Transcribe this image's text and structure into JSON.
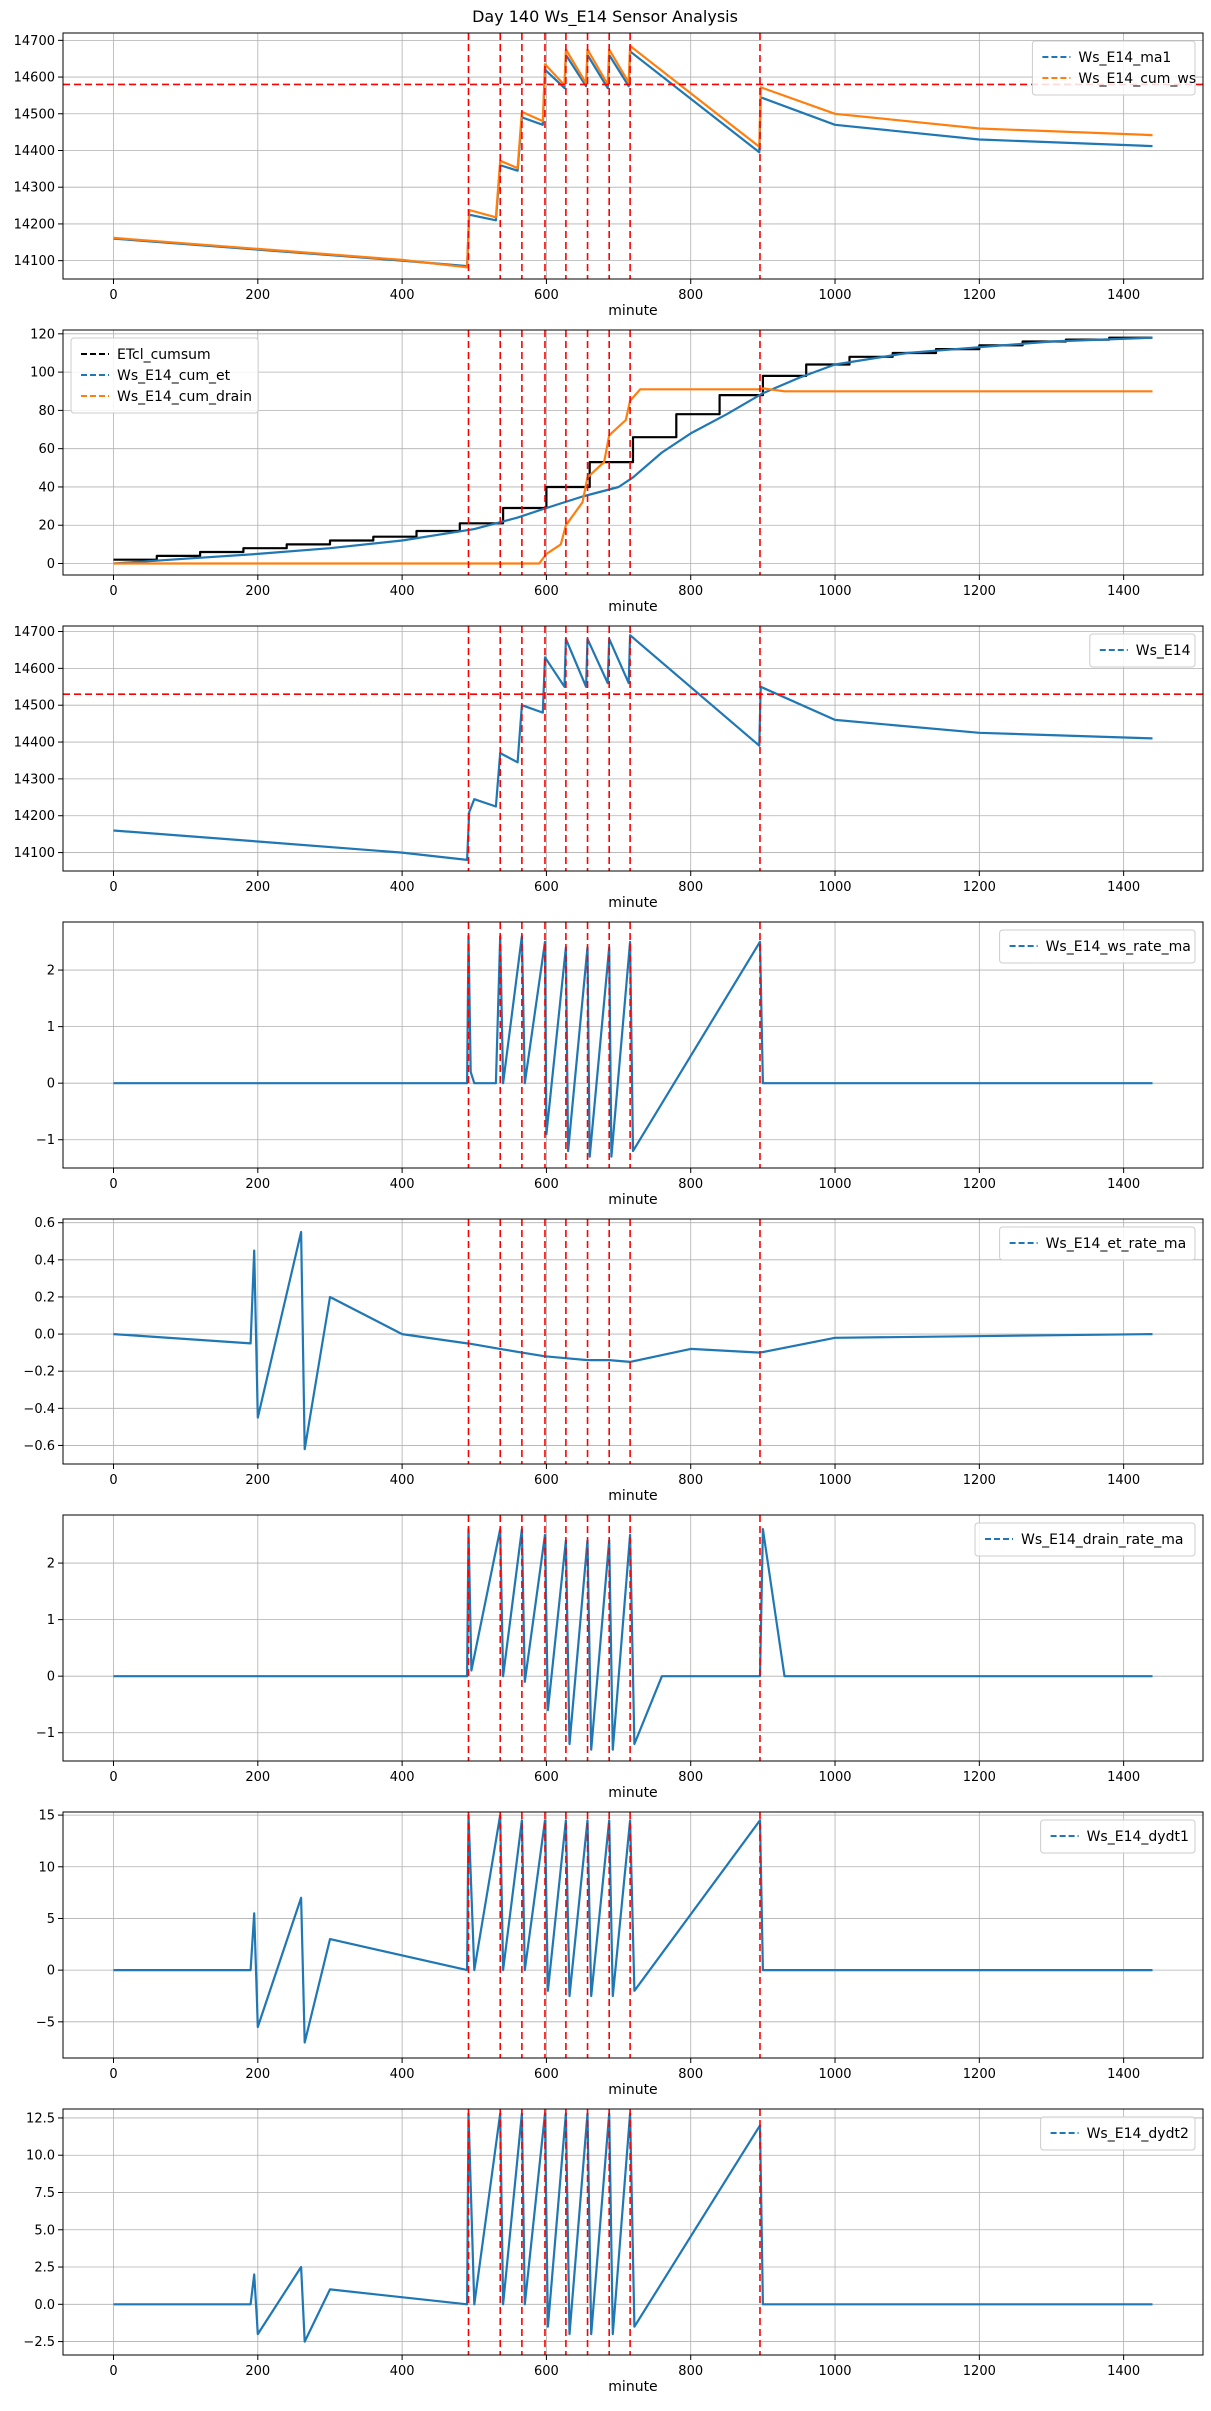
{
  "figure_title": "Day 140 Ws_E14 Sensor Analysis",
  "colors": {
    "blue": "#1f77b4",
    "orange": "#ff7f0e",
    "black": "#000000",
    "red": "#ff0000",
    "grid": "#b0b0b0"
  },
  "chart_data": [
    {
      "type": "line",
      "title": "Day 140 Ws_E14 Sensor Analysis",
      "xlabel": "minute",
      "xlim": [
        -70,
        1510
      ],
      "ylim": [
        14050,
        14720
      ],
      "xticks": [
        0,
        200,
        400,
        600,
        800,
        1000,
        1200,
        1400
      ],
      "yticks": [
        14100,
        14200,
        14300,
        14400,
        14500,
        14600,
        14700
      ],
      "legend": "top-right",
      "hline": 14580,
      "vlines": [
        492,
        536,
        566,
        598,
        627,
        657,
        687,
        716,
        896
      ],
      "series": [
        {
          "name": "Ws_E14_ma1",
          "color": "#1f77b4",
          "x": [
            0,
            200,
            400,
            490,
            493,
            530,
            536,
            560,
            566,
            595,
            598,
            625,
            627,
            655,
            657,
            685,
            687,
            714,
            716,
            895,
            897,
            1000,
            1200,
            1440
          ],
          "y": [
            14160,
            14130,
            14100,
            14085,
            14225,
            14210,
            14360,
            14345,
            14490,
            14470,
            14620,
            14570,
            14660,
            14575,
            14660,
            14570,
            14660,
            14575,
            14670,
            14395,
            14545,
            14470,
            14430,
            14412
          ]
        },
        {
          "name": "Ws_E14_cum_ws",
          "color": "#ff7f0e",
          "x": [
            0,
            200,
            400,
            490,
            493,
            530,
            536,
            560,
            566,
            595,
            598,
            625,
            627,
            655,
            657,
            685,
            687,
            714,
            716,
            895,
            897,
            1000,
            1200,
            1440
          ],
          "y": [
            14162,
            14132,
            14102,
            14082,
            14238,
            14218,
            14372,
            14352,
            14505,
            14480,
            14635,
            14578,
            14675,
            14583,
            14675,
            14580,
            14675,
            14585,
            14685,
            14410,
            14572,
            14500,
            14460,
            14442
          ]
        }
      ]
    },
    {
      "type": "line",
      "xlabel": "minute",
      "xlim": [
        -70,
        1510
      ],
      "ylim": [
        -6,
        122
      ],
      "xticks": [
        0,
        200,
        400,
        600,
        800,
        1000,
        1200,
        1400
      ],
      "yticks": [
        0,
        20,
        40,
        60,
        80,
        100,
        120
      ],
      "legend": "top-left",
      "vlines": [
        492,
        536,
        566,
        598,
        627,
        657,
        687,
        716,
        896
      ],
      "series": [
        {
          "name": "ETcl_cumsum",
          "color": "#000000",
          "step": true,
          "x": [
            0,
            60,
            120,
            180,
            240,
            300,
            360,
            420,
            480,
            540,
            600,
            660,
            720,
            780,
            840,
            900,
            960,
            1020,
            1080,
            1140,
            1200,
            1260,
            1320,
            1380,
            1440
          ],
          "y": [
            2,
            4,
            6,
            8,
            10,
            12,
            14,
            17,
            21,
            29,
            40,
            53,
            66,
            78,
            88,
            98,
            104,
            108,
            110,
            112,
            114,
            116,
            117,
            118,
            118
          ]
        },
        {
          "name": "Ws_E14_cum_et",
          "color": "#1f77b4",
          "x": [
            0,
            100,
            200,
            300,
            400,
            500,
            560,
            600,
            650,
            700,
            720,
            760,
            800,
            850,
            900,
            950,
            1000,
            1100,
            1200,
            1300,
            1440
          ],
          "y": [
            0,
            2.5,
            5,
            8,
            12,
            18,
            24,
            29,
            35,
            40,
            45,
            58,
            68,
            78,
            89,
            97,
            104,
            110,
            113,
            116,
            118
          ]
        },
        {
          "name": "Ws_E14_cum_drain",
          "color": "#ff7f0e",
          "x": [
            0,
            590,
            600,
            620,
            627,
            650,
            657,
            680,
            687,
            710,
            716,
            730,
            740,
            896,
            900,
            930,
            1440
          ],
          "y": [
            0,
            0,
            5,
            10,
            20,
            32,
            45,
            53,
            67,
            75,
            85,
            91,
            91,
            91,
            91.5,
            90,
            90
          ]
        }
      ]
    },
    {
      "type": "line",
      "xlabel": "minute",
      "xlim": [
        -70,
        1510
      ],
      "ylim": [
        14050,
        14715
      ],
      "xticks": [
        0,
        200,
        400,
        600,
        800,
        1000,
        1200,
        1400
      ],
      "yticks": [
        14100,
        14200,
        14300,
        14400,
        14500,
        14600,
        14700
      ],
      "legend": "top-right",
      "hline": 14530,
      "vlines": [
        492,
        536,
        566,
        598,
        627,
        657,
        687,
        716,
        896
      ],
      "series": [
        {
          "name": "Ws_E14",
          "color": "#1f77b4",
          "x": [
            0,
            200,
            400,
            490,
            493,
            500,
            530,
            536,
            560,
            566,
            595,
            598,
            625,
            627,
            655,
            657,
            685,
            687,
            714,
            716,
            895,
            897,
            1000,
            1200,
            1440
          ],
          "y": [
            14160,
            14130,
            14100,
            14080,
            14210,
            14245,
            14225,
            14370,
            14345,
            14500,
            14480,
            14630,
            14550,
            14680,
            14550,
            14680,
            14560,
            14680,
            14560,
            14690,
            14390,
            14550,
            14460,
            14425,
            14410
          ]
        }
      ]
    },
    {
      "type": "line",
      "xlabel": "minute",
      "xlim": [
        -70,
        1510
      ],
      "ylim": [
        -1.5,
        2.85
      ],
      "xticks": [
        0,
        200,
        400,
        600,
        800,
        1000,
        1200,
        1400
      ],
      "yticks": [
        -1,
        0,
        1,
        2
      ],
      "legend": "top-right",
      "vlines": [
        492,
        536,
        566,
        598,
        627,
        657,
        687,
        716,
        896
      ],
      "series": [
        {
          "name": "Ws_E14_ws_rate_ma",
          "color": "#1f77b4",
          "x": [
            0,
            490,
            492,
            495,
            500,
            530,
            536,
            540,
            566,
            570,
            598,
            600,
            627,
            630,
            657,
            660,
            687,
            690,
            716,
            720,
            896,
            900,
            1000,
            1440
          ],
          "y": [
            0,
            0,
            2.6,
            0.2,
            0,
            0,
            2.6,
            0,
            2.6,
            0,
            2.5,
            -0.9,
            2.4,
            -1.2,
            2.4,
            -1.3,
            2.4,
            -1.3,
            2.5,
            -1.2,
            2.5,
            0,
            0,
            0
          ]
        }
      ]
    },
    {
      "type": "line",
      "xlabel": "minute",
      "xlim": [
        -70,
        1510
      ],
      "ylim": [
        -0.7,
        0.62
      ],
      "xticks": [
        0,
        200,
        400,
        600,
        800,
        1000,
        1200,
        1400
      ],
      "yticks": [
        -0.6,
        -0.4,
        -0.2,
        0.0,
        0.2,
        0.4,
        0.6
      ],
      "legend": "top-right",
      "vlines": [
        492,
        536,
        566,
        598,
        627,
        657,
        687,
        716,
        896
      ],
      "series": [
        {
          "name": "Ws_E14_et_rate_ma",
          "color": "#1f77b4",
          "x": [
            0,
            190,
            195,
            200,
            260,
            265,
            300,
            400,
            490,
            492,
            536,
            566,
            598,
            627,
            657,
            687,
            716,
            800,
            896,
            1000,
            1440
          ],
          "y": [
            0,
            -0.05,
            0.45,
            -0.45,
            0.55,
            -0.62,
            0.2,
            0,
            -0.05,
            -0.05,
            -0.08,
            -0.1,
            -0.12,
            -0.13,
            -0.14,
            -0.14,
            -0.15,
            -0.08,
            -0.1,
            -0.02,
            0
          ]
        }
      ]
    },
    {
      "type": "line",
      "xlabel": "minute",
      "xlim": [
        -70,
        1510
      ],
      "ylim": [
        -1.5,
        2.85
      ],
      "xticks": [
        0,
        200,
        400,
        600,
        800,
        1000,
        1200,
        1400
      ],
      "yticks": [
        -1,
        0,
        1,
        2
      ],
      "legend": "top-right",
      "vlines": [
        492,
        536,
        566,
        598,
        627,
        657,
        687,
        716,
        896
      ],
      "series": [
        {
          "name": "Ws_E14_drain_rate_ma",
          "color": "#1f77b4",
          "x": [
            0,
            490,
            492,
            496,
            536,
            540,
            566,
            570,
            598,
            602,
            627,
            632,
            657,
            662,
            687,
            692,
            716,
            722,
            760,
            896,
            900,
            930,
            1440
          ],
          "y": [
            0,
            0,
            2.6,
            0.1,
            2.6,
            0,
            2.6,
            -0.1,
            2.5,
            -0.6,
            2.4,
            -1.2,
            2.4,
            -1.3,
            2.4,
            -1.3,
            2.5,
            -1.2,
            0,
            0,
            2.6,
            0,
            0
          ]
        }
      ]
    },
    {
      "type": "line",
      "xlabel": "minute",
      "xlim": [
        -70,
        1510
      ],
      "ylim": [
        -8.5,
        15.3
      ],
      "xticks": [
        0,
        200,
        400,
        600,
        800,
        1000,
        1200,
        1400
      ],
      "yticks": [
        -5,
        0,
        5,
        10,
        15
      ],
      "legend": "top-right",
      "vlines": [
        492,
        536,
        566,
        598,
        627,
        657,
        687,
        716,
        896
      ],
      "series": [
        {
          "name": "Ws_E14_dydt1",
          "color": "#1f77b4",
          "x": [
            0,
            190,
            195,
            200,
            260,
            265,
            300,
            490,
            492,
            500,
            536,
            540,
            566,
            570,
            598,
            602,
            627,
            632,
            657,
            662,
            687,
            692,
            716,
            722,
            896,
            900,
            1000,
            1440
          ],
          "y": [
            0,
            0,
            5.5,
            -5.5,
            7,
            -7,
            3,
            0,
            15,
            0,
            15,
            0,
            14.5,
            0,
            14.5,
            -2,
            14.5,
            -2.5,
            14.5,
            -2.5,
            14.5,
            -2.5,
            14.5,
            -2,
            14.5,
            0,
            0,
            0
          ]
        }
      ]
    },
    {
      "type": "line",
      "xlabel": "minute",
      "xlim": [
        -70,
        1510
      ],
      "ylim": [
        -3.4,
        13.1
      ],
      "xticks": [
        0,
        200,
        400,
        600,
        800,
        1000,
        1200,
        1400
      ],
      "yticks": [
        -2.5,
        0.0,
        2.5,
        5.0,
        7.5,
        10.0,
        12.5
      ],
      "legend": "top-right",
      "vlines": [
        492,
        536,
        566,
        598,
        627,
        657,
        687,
        716,
        896
      ],
      "series": [
        {
          "name": "Ws_E14_dydt2",
          "color": "#1f77b4",
          "x": [
            0,
            190,
            195,
            200,
            260,
            265,
            300,
            490,
            492,
            500,
            536,
            540,
            566,
            570,
            598,
            602,
            627,
            632,
            657,
            662,
            687,
            692,
            716,
            722,
            896,
            900,
            1000,
            1440
          ],
          "y": [
            0,
            0,
            2,
            -2,
            2.5,
            -2.5,
            1,
            0,
            12.8,
            0,
            12.8,
            0,
            12.8,
            0,
            12.8,
            -1.5,
            12.8,
            -2,
            12.8,
            -2,
            12.8,
            -2,
            12.8,
            -1.5,
            12,
            0,
            0,
            0
          ]
        }
      ]
    }
  ]
}
